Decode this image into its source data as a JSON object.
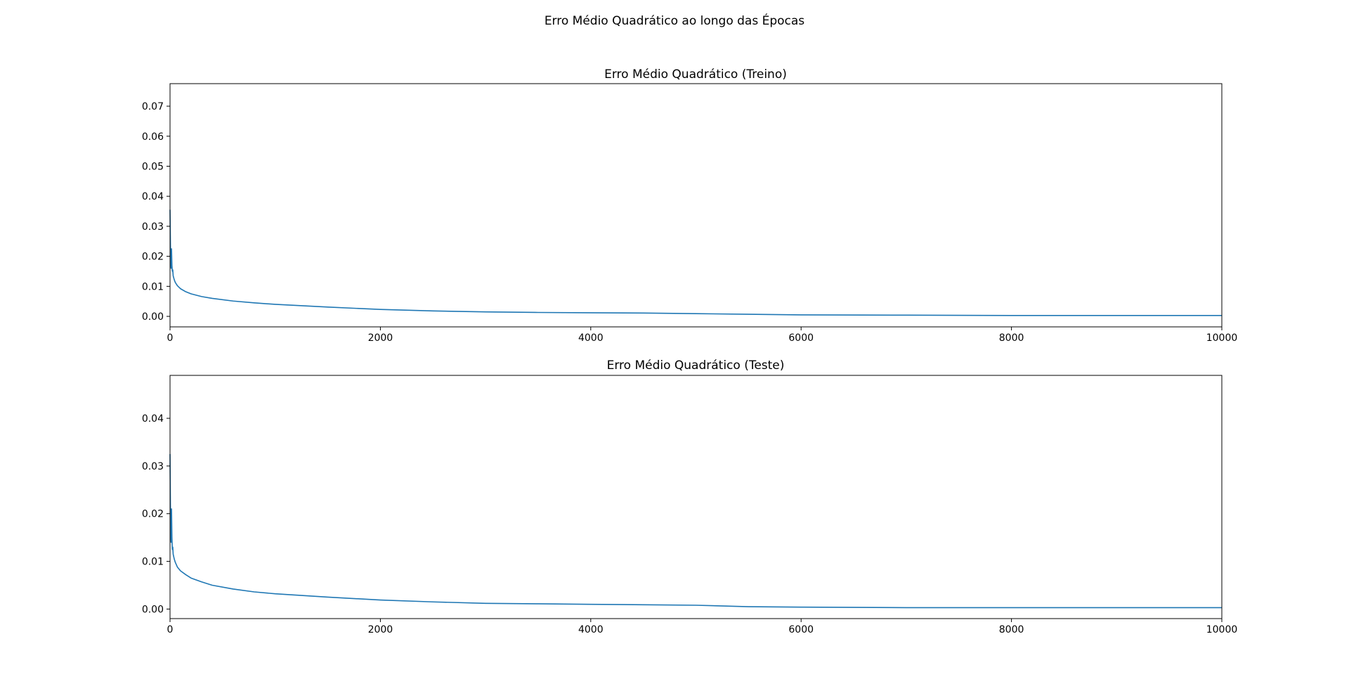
{
  "figure": {
    "suptitle": "Erro Médio Quadrático ao longo das Épocas"
  },
  "chart_data": [
    {
      "type": "line",
      "title": "Erro Médio Quadrático (Treino)",
      "xlabel": "",
      "ylabel": "",
      "xlim": [
        0,
        10000
      ],
      "ylim": [
        -0.0035,
        0.0775
      ],
      "xticks": [
        0,
        2000,
        4000,
        6000,
        8000,
        10000
      ],
      "xtick_labels": [
        "0",
        "2000",
        "4000",
        "6000",
        "8000",
        "10000"
      ],
      "yticks": [
        0.0,
        0.01,
        0.02,
        0.03,
        0.04,
        0.05,
        0.06,
        0.07
      ],
      "ytick_labels": [
        "0.00",
        "0.01",
        "0.02",
        "0.03",
        "0.04",
        "0.05",
        "0.06",
        "0.07"
      ],
      "grid": false,
      "color": "#1f77b4",
      "series": [
        {
          "x": [
            0,
            3,
            6,
            10,
            14,
            18,
            22,
            26,
            30,
            40,
            50,
            70,
            100,
            150,
            200,
            300,
            400,
            600,
            800,
            1000,
            1500,
            2000,
            2500,
            3000,
            3500,
            4000,
            4500,
            5000,
            5500,
            6000,
            7000,
            8000,
            9000,
            10000
          ],
          "y": [
            0.0355,
            0.027,
            0.018,
            0.016,
            0.0225,
            0.017,
            0.015,
            0.0155,
            0.0135,
            0.0122,
            0.0113,
            0.0102,
            0.0092,
            0.0082,
            0.0075,
            0.0066,
            0.006,
            0.0051,
            0.0045,
            0.004,
            0.0031,
            0.0023,
            0.0018,
            0.0015,
            0.0013,
            0.0012,
            0.0011,
            0.0009,
            0.0007,
            0.0005,
            0.0004,
            0.0003,
            0.0003,
            0.0003
          ]
        }
      ]
    },
    {
      "type": "line",
      "title": "Erro Médio Quadrático (Teste)",
      "xlabel": "",
      "ylabel": "",
      "xlim": [
        0,
        10000
      ],
      "ylim": [
        -0.002,
        0.049
      ],
      "xticks": [
        0,
        2000,
        4000,
        6000,
        8000,
        10000
      ],
      "xtick_labels": [
        "0",
        "2000",
        "4000",
        "6000",
        "8000",
        "10000"
      ],
      "yticks": [
        0.0,
        0.01,
        0.02,
        0.03,
        0.04
      ],
      "ytick_labels": [
        "0.00",
        "0.01",
        "0.02",
        "0.03",
        "0.04"
      ],
      "grid": false,
      "color": "#1f77b4",
      "series": [
        {
          "x": [
            0,
            3,
            6,
            10,
            14,
            18,
            22,
            26,
            30,
            40,
            50,
            70,
            100,
            150,
            200,
            300,
            400,
            600,
            800,
            1000,
            1500,
            2000,
            2500,
            3000,
            3500,
            4000,
            4500,
            5000,
            5500,
            6000,
            7000,
            8000,
            9000,
            10000
          ],
          "y": [
            0.0325,
            0.024,
            0.016,
            0.014,
            0.021,
            0.015,
            0.0125,
            0.013,
            0.0115,
            0.0105,
            0.0098,
            0.0088,
            0.008,
            0.0072,
            0.0065,
            0.0057,
            0.005,
            0.0042,
            0.0036,
            0.0032,
            0.0025,
            0.0019,
            0.0015,
            0.0012,
            0.0011,
            0.001,
            0.0009,
            0.0008,
            0.0005,
            0.0004,
            0.0003,
            0.0003,
            0.0003,
            0.0003
          ]
        }
      ]
    }
  ]
}
